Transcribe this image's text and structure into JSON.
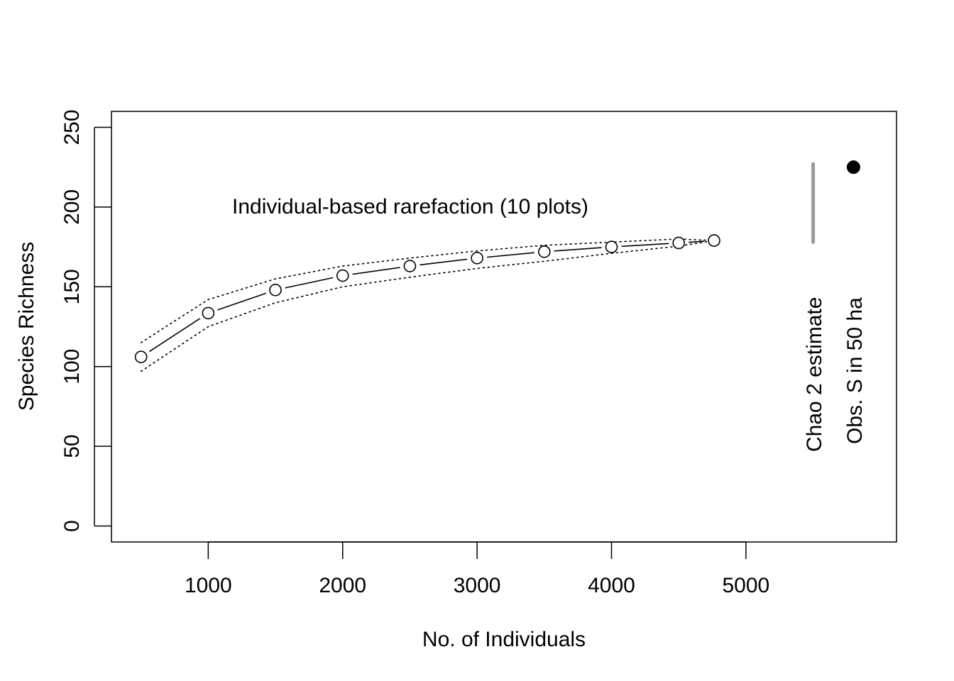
{
  "chart_data": {
    "type": "line",
    "title": "",
    "xlabel": "No. of Individuals",
    "ylabel": "Species Richness",
    "xlim": [
      280,
      6120
    ],
    "ylim": [
      -10,
      260
    ],
    "xticks": [
      1000,
      2000,
      3000,
      4000,
      5000
    ],
    "yticks": [
      0,
      50,
      100,
      150,
      200,
      250
    ],
    "grid": false,
    "x": [
      500,
      1000,
      1500,
      2000,
      2500,
      3000,
      3500,
      4000,
      4500,
      4763
    ],
    "series": [
      {
        "role": "mean",
        "values": [
          106,
          133.5,
          148,
          157,
          163,
          168,
          172,
          175,
          177.5,
          179
        ]
      },
      {
        "role": "upper",
        "values": [
          115,
          142,
          155,
          163,
          168,
          172.5,
          176,
          178,
          180,
          179
        ]
      },
      {
        "role": "lower",
        "values": [
          97,
          125,
          140,
          150,
          156,
          161.5,
          166,
          171,
          175.5,
          179
        ]
      }
    ],
    "annotations": {
      "curve_label": {
        "text": "Individual-based rarefaction (10 plots)",
        "x": 2500,
        "y": 200
      },
      "chao2": {
        "label": "Chao 2 estimate",
        "x": 5500,
        "low": 178,
        "high": 227,
        "color": "#999999"
      },
      "observed": {
        "label": "Obs. S in 50 ha",
        "x": 5800,
        "y": 225,
        "color": "#000000"
      }
    }
  }
}
